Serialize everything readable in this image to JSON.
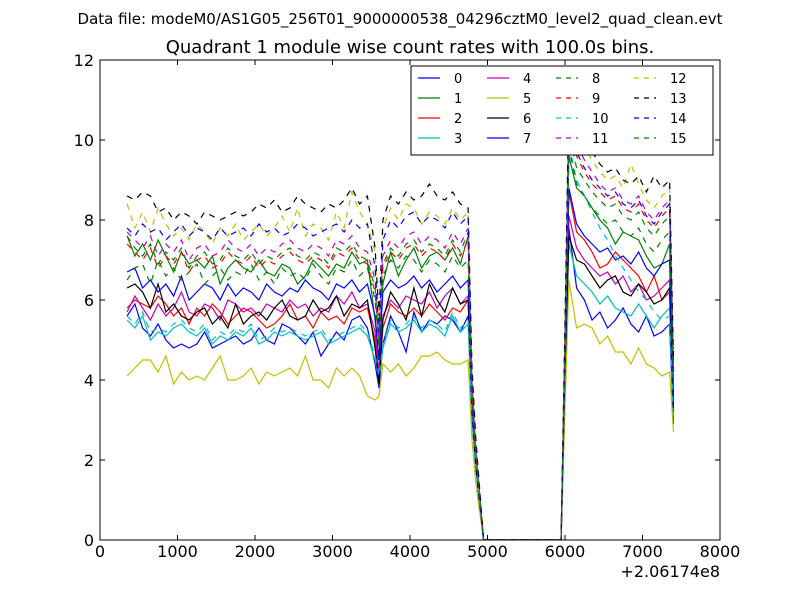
{
  "chart_data": {
    "type": "line",
    "suptitle": "Data file: modeM0/AS1G05_256T01_9000000538_04296cztM0_level2_quad_clean.evt",
    "title": "Quadrant 1 module wise count rates with 100.0s bins.",
    "xlabel": "",
    "ylabel": "",
    "xlim": [
      0,
      8000
    ],
    "ylim": [
      0,
      12
    ],
    "x_offset_label": "+2.06174e8",
    "x_ticks": [
      0,
      1000,
      2000,
      3000,
      4000,
      5000,
      6000,
      7000,
      8000
    ],
    "y_ticks": [
      0,
      2,
      4,
      6,
      8,
      10,
      12
    ],
    "grid": false,
    "legend_position": "upper right",
    "legend_columns": 4,
    "x": [
      350,
      450,
      550,
      650,
      750,
      850,
      950,
      1050,
      1150,
      1250,
      1350,
      1450,
      1550,
      1650,
      1750,
      1850,
      1950,
      2050,
      2150,
      2250,
      2350,
      2450,
      2550,
      2650,
      2750,
      2850,
      2950,
      3050,
      3150,
      3250,
      3350,
      3450,
      3550,
      3600,
      3650,
      3750,
      3850,
      3950,
      4050,
      4150,
      4250,
      4350,
      4450,
      4550,
      4650,
      4750,
      4800,
      4850,
      4950,
      5050,
      5950,
      6000,
      6050,
      6150,
      6250,
      6350,
      6450,
      6550,
      6650,
      6750,
      6850,
      6950,
      7050,
      7150,
      7250,
      7350,
      7400
    ],
    "series": [
      {
        "name": "0",
        "color": "#0000ff",
        "dash": "solid",
        "values": [
          5.6,
          5.9,
          5.3,
          5.1,
          5.4,
          5.0,
          4.8,
          4.9,
          4.8,
          4.9,
          5.2,
          4.8,
          4.9,
          5.0,
          5.1,
          4.9,
          5.0,
          5.3,
          5.0,
          4.9,
          5.4,
          5.3,
          5.1,
          4.9,
          5.2,
          4.6,
          4.9,
          5.2,
          5.0,
          5.5,
          5.6,
          5.3,
          4.4,
          3.8,
          4.9,
          5.6,
          5.2,
          4.7,
          5.7,
          5.2,
          5.5,
          5.4,
          5.6,
          5.5,
          5.2,
          5.6,
          3.0,
          1.8,
          0.0,
          0.0,
          0.0,
          4.0,
          7.8,
          6.3,
          6.0,
          5.5,
          5.7,
          5.3,
          5.5,
          5.8,
          5.4,
          5.2,
          5.6,
          5.1,
          5.2,
          5.4,
          2.9
        ]
      },
      {
        "name": "1",
        "color": "#008000",
        "dash": "solid",
        "values": [
          7.6,
          7.1,
          7.4,
          7.0,
          7.5,
          7.1,
          6.7,
          7.2,
          6.9,
          7.0,
          6.8,
          7.1,
          6.4,
          6.8,
          7.0,
          6.8,
          6.7,
          7.0,
          6.7,
          6.6,
          6.9,
          6.8,
          6.4,
          6.6,
          7.0,
          6.8,
          6.6,
          6.9,
          6.8,
          7.2,
          6.9,
          7.0,
          5.5,
          4.5,
          6.4,
          7.2,
          6.6,
          7.0,
          7.3,
          6.8,
          7.1,
          7.2,
          7.0,
          7.3,
          6.9,
          7.6,
          3.5,
          2.0,
          0.0,
          0.0,
          0.0,
          4.5,
          9.6,
          8.8,
          8.6,
          8.3,
          8.0,
          7.8,
          7.4,
          7.7,
          7.6,
          7.5,
          7.1,
          6.8,
          6.9,
          7.4,
          3.5
        ]
      },
      {
        "name": "2",
        "color": "#ff0000",
        "dash": "solid",
        "values": [
          5.8,
          6.0,
          5.9,
          5.8,
          6.1,
          5.9,
          5.6,
          5.8,
          5.4,
          5.8,
          5.6,
          5.9,
          5.7,
          5.4,
          5.6,
          5.8,
          5.7,
          5.5,
          5.3,
          5.4,
          5.6,
          5.9,
          5.5,
          5.6,
          5.3,
          5.7,
          5.5,
          5.6,
          5.4,
          5.8,
          5.7,
          5.8,
          5.0,
          4.0,
          5.3,
          5.9,
          5.7,
          5.6,
          5.8,
          5.6,
          5.9,
          5.7,
          5.5,
          5.8,
          5.7,
          6.0,
          3.2,
          1.9,
          0.0,
          0.0,
          0.0,
          4.4,
          8.7,
          7.7,
          7.5,
          7.2,
          6.8,
          6.9,
          7.2,
          7.0,
          6.8,
          6.6,
          6.2,
          6.6,
          6.0,
          6.2,
          3.2
        ]
      },
      {
        "name": "3",
        "color": "#00bfbf",
        "dash": "solid",
        "values": [
          5.5,
          5.3,
          5.6,
          5.0,
          5.2,
          5.1,
          5.3,
          5.4,
          5.2,
          5.1,
          5.3,
          4.9,
          5.1,
          5.0,
          5.2,
          5.1,
          5.3,
          4.9,
          5.0,
          5.2,
          5.1,
          5.2,
          5.1,
          5.0,
          5.1,
          5.2,
          4.9,
          5.0,
          5.1,
          5.2,
          5.3,
          5.1,
          4.5,
          4.0,
          4.8,
          5.4,
          5.2,
          5.3,
          5.5,
          5.2,
          5.4,
          5.3,
          5.1,
          5.6,
          5.2,
          5.4,
          3.0,
          1.8,
          0.0,
          0.0,
          0.0,
          4.3,
          7.4,
          6.6,
          6.4,
          6.2,
          5.9,
          6.1,
          5.8,
          5.7,
          5.6,
          5.9,
          5.6,
          5.3,
          5.6,
          5.8,
          3.1
        ]
      },
      {
        "name": "4",
        "color": "#bf00bf",
        "dash": "solid",
        "values": [
          5.7,
          6.1,
          5.8,
          5.5,
          5.9,
          5.6,
          5.8,
          6.2,
          5.7,
          5.6,
          5.9,
          5.8,
          5.5,
          6.0,
          5.9,
          5.7,
          5.8,
          5.6,
          5.9,
          5.8,
          5.7,
          6.0,
          5.8,
          5.9,
          5.6,
          5.8,
          5.7,
          6.1,
          5.9,
          6.2,
          5.8,
          5.9,
          5.2,
          4.2,
          5.6,
          6.0,
          5.8,
          6.1,
          6.0,
          5.9,
          6.2,
          5.8,
          6.1,
          6.3,
          5.9,
          6.1,
          3.3,
          1.9,
          0.0,
          0.0,
          0.0,
          4.6,
          8.1,
          7.3,
          7.0,
          6.8,
          6.6,
          6.7,
          6.4,
          6.6,
          6.2,
          6.4,
          6.0,
          6.1,
          6.3,
          6.5,
          3.3
        ]
      },
      {
        "name": "5",
        "color": "#bfbf00",
        "dash": "solid",
        "values": [
          4.1,
          4.3,
          4.5,
          4.5,
          4.2,
          4.6,
          3.9,
          4.2,
          4.0,
          4.1,
          4.0,
          4.3,
          4.6,
          4.0,
          4.0,
          4.1,
          4.3,
          3.9,
          4.2,
          4.1,
          4.2,
          4.3,
          4.1,
          4.6,
          4.0,
          4.0,
          3.8,
          4.3,
          4.1,
          4.3,
          4.1,
          3.6,
          3.5,
          3.6,
          4.4,
          4.2,
          4.4,
          4.1,
          4.3,
          4.6,
          4.6,
          4.7,
          4.5,
          4.4,
          4.4,
          4.5,
          2.5,
          1.4,
          0.0,
          0.0,
          0.0,
          3.3,
          6.5,
          5.3,
          5.4,
          5.3,
          4.9,
          5.1,
          4.7,
          4.7,
          4.4,
          4.8,
          4.4,
          4.3,
          4.1,
          4.2,
          2.7
        ]
      },
      {
        "name": "6",
        "color": "#000000",
        "dash": "solid",
        "values": [
          6.3,
          6.4,
          6.2,
          5.8,
          6.4,
          5.7,
          5.9,
          5.6,
          5.5,
          5.7,
          5.8,
          5.4,
          5.6,
          5.3,
          5.9,
          5.4,
          5.6,
          5.7,
          5.5,
          5.8,
          6.0,
          5.6,
          5.5,
          5.6,
          6.0,
          5.7,
          5.8,
          6.1,
          5.6,
          5.9,
          5.8,
          6.0,
          4.8,
          3.9,
          5.5,
          6.2,
          5.9,
          5.5,
          6.3,
          5.6,
          6.4,
          6.0,
          5.7,
          6.3,
          5.9,
          6.0,
          3.2,
          1.8,
          0.0,
          0.0,
          0.0,
          4.2,
          7.6,
          7.0,
          6.9,
          6.6,
          6.3,
          6.5,
          6.6,
          6.2,
          6.1,
          6.4,
          6.2,
          5.9,
          6.0,
          6.3,
          3.2
        ]
      },
      {
        "name": "7",
        "color": "#0000ff",
        "dash": "solid",
        "values": [
          6.7,
          6.8,
          6.3,
          6.5,
          6.2,
          6.4,
          6.1,
          6.6,
          6.0,
          6.2,
          6.4,
          6.3,
          6.0,
          6.4,
          6.1,
          6.3,
          6.2,
          6.0,
          6.4,
          6.2,
          6.1,
          6.3,
          6.2,
          6.5,
          6.3,
          6.2,
          6.0,
          6.4,
          6.3,
          6.5,
          6.2,
          6.4,
          5.6,
          4.5,
          6.2,
          6.5,
          6.3,
          6.4,
          6.6,
          6.3,
          6.5,
          6.2,
          6.4,
          6.6,
          6.3,
          6.5,
          3.4,
          2.0,
          0.0,
          0.0,
          0.0,
          4.7,
          8.8,
          7.9,
          7.6,
          7.4,
          7.2,
          7.3,
          7.0,
          7.1,
          6.9,
          7.2,
          6.8,
          6.6,
          6.9,
          7.0,
          3.5
        ]
      },
      {
        "name": "8",
        "color": "#008000",
        "dash": "dashed",
        "values": [
          7.6,
          7.3,
          7.1,
          7.4,
          6.9,
          7.2,
          7.0,
          7.3,
          6.8,
          7.1,
          7.2,
          6.9,
          7.0,
          7.3,
          7.1,
          7.0,
          7.2,
          6.9,
          7.1,
          7.0,
          7.2,
          7.3,
          7.1,
          7.0,
          7.2,
          7.1,
          6.9,
          7.3,
          7.2,
          7.4,
          7.1,
          7.0,
          6.3,
          5.0,
          6.9,
          7.3,
          7.1,
          7.4,
          7.5,
          7.2,
          7.4,
          7.3,
          7.1,
          7.5,
          7.2,
          7.7,
          3.8,
          2.2,
          0.0,
          0.0,
          0.0,
          5.0,
          10.2,
          9.3,
          9.0,
          8.7,
          8.5,
          8.3,
          8.4,
          8.1,
          8.0,
          8.2,
          7.8,
          7.6,
          7.9,
          8.1,
          4.0
        ]
      },
      {
        "name": "9",
        "color": "#ff0000",
        "dash": "dashed",
        "values": [
          7.4,
          7.2,
          7.0,
          7.3,
          6.8,
          7.1,
          6.9,
          7.2,
          6.7,
          7.0,
          7.1,
          6.8,
          6.9,
          7.2,
          7.0,
          6.9,
          7.1,
          6.8,
          7.0,
          6.9,
          7.1,
          7.2,
          7.0,
          6.9,
          7.1,
          7.0,
          6.8,
          7.2,
          7.1,
          7.3,
          7.0,
          6.9,
          6.2,
          4.9,
          6.8,
          7.2,
          7.0,
          7.3,
          7.4,
          7.1,
          7.3,
          7.2,
          7.0,
          7.4,
          7.1,
          7.5,
          3.7,
          2.1,
          0.0,
          0.0,
          0.0,
          4.9,
          10.5,
          9.6,
          9.2,
          8.9,
          8.7,
          8.5,
          8.6,
          8.3,
          8.2,
          8.4,
          8.0,
          7.8,
          8.1,
          8.3,
          4.1
        ]
      },
      {
        "name": "10",
        "color": "#00bfbf",
        "dash": "dashed",
        "values": [
          5.6,
          5.4,
          5.7,
          5.2,
          5.3,
          5.2,
          5.4,
          5.5,
          5.3,
          5.2,
          5.4,
          5.0,
          5.2,
          5.1,
          5.3,
          5.2,
          5.4,
          5.0,
          5.1,
          5.3,
          5.2,
          5.3,
          5.2,
          5.1,
          5.2,
          5.3,
          5.0,
          5.1,
          5.2,
          5.3,
          5.4,
          5.2,
          4.6,
          4.1,
          4.9,
          5.5,
          5.3,
          5.4,
          5.6,
          5.3,
          5.5,
          5.4,
          5.2,
          5.7,
          5.3,
          5.5,
          3.0,
          1.8,
          0.0,
          0.0,
          0.0,
          4.4,
          9.9,
          9.0,
          8.6,
          8.2,
          7.8,
          7.5,
          7.1,
          6.8,
          6.5,
          6.2,
          6.0,
          5.7,
          5.5,
          5.6,
          3.0
        ]
      },
      {
        "name": "11",
        "color": "#bf00bf",
        "dash": "dashed",
        "values": [
          7.7,
          7.5,
          7.3,
          7.6,
          7.1,
          7.4,
          7.2,
          7.5,
          7.0,
          7.3,
          7.4,
          7.1,
          7.2,
          7.5,
          7.3,
          7.2,
          7.4,
          7.1,
          7.3,
          7.2,
          7.4,
          7.5,
          7.3,
          7.2,
          7.4,
          7.3,
          7.1,
          7.5,
          7.4,
          7.6,
          7.3,
          7.2,
          6.5,
          5.1,
          7.1,
          7.5,
          7.3,
          7.6,
          7.7,
          7.4,
          7.6,
          7.5,
          7.3,
          7.7,
          7.4,
          7.8,
          3.9,
          2.2,
          0.0,
          0.0,
          0.0,
          5.1,
          10.8,
          9.9,
          9.5,
          9.2,
          8.9,
          8.7,
          8.8,
          8.5,
          8.4,
          8.6,
          8.2,
          8.0,
          8.3,
          8.5,
          4.2
        ]
      },
      {
        "name": "12",
        "color": "#bfbf00",
        "dash": "dashed",
        "values": [
          8.4,
          7.8,
          8.2,
          7.7,
          8.3,
          7.9,
          7.6,
          7.8,
          7.5,
          7.9,
          7.7,
          7.4,
          7.8,
          7.6,
          7.9,
          7.5,
          7.7,
          7.9,
          7.6,
          7.8,
          8.1,
          7.7,
          8.3,
          7.6,
          7.9,
          7.8,
          7.5,
          8.2,
          7.8,
          8.7,
          8.2,
          7.9,
          7.2,
          5.4,
          7.8,
          8.3,
          8.0,
          8.4,
          8.3,
          7.9,
          8.2,
          8.1,
          7.9,
          8.3,
          8.0,
          8.2,
          4.2,
          2.4,
          0.0,
          0.0,
          0.0,
          5.3,
          11.0,
          10.2,
          9.8,
          9.5,
          9.2,
          9.0,
          9.1,
          8.8,
          9.4,
          8.9,
          8.5,
          8.3,
          8.6,
          8.8,
          4.4
        ]
      },
      {
        "name": "13",
        "color": "#000000",
        "dash": "dashed",
        "values": [
          8.6,
          8.5,
          8.7,
          8.6,
          8.2,
          8.3,
          8.0,
          8.2,
          8.1,
          7.9,
          8.2,
          8.1,
          8.0,
          8.1,
          8.2,
          8.1,
          8.2,
          8.4,
          8.3,
          8.5,
          8.2,
          8.3,
          8.6,
          8.4,
          8.3,
          8.2,
          8.4,
          8.3,
          8.5,
          8.8,
          8.4,
          8.6,
          7.3,
          5.6,
          8.0,
          8.6,
          8.4,
          8.7,
          8.5,
          8.6,
          8.9,
          8.6,
          8.5,
          8.7,
          8.4,
          8.3,
          4.3,
          2.5,
          0.0,
          0.0,
          0.0,
          5.5,
          11.2,
          10.4,
          10.0,
          9.7,
          9.4,
          9.2,
          9.3,
          9.0,
          8.9,
          9.1,
          8.7,
          9.1,
          8.8,
          9.0,
          4.5
        ]
      },
      {
        "name": "14",
        "color": "#0000ff",
        "dash": "dashed",
        "values": [
          7.8,
          7.6,
          7.9,
          7.7,
          7.8,
          7.5,
          7.7,
          7.9,
          7.6,
          7.8,
          7.7,
          7.5,
          7.8,
          7.6,
          7.7,
          7.8,
          7.6,
          7.9,
          7.7,
          7.8,
          7.6,
          7.7,
          7.9,
          7.8,
          7.6,
          7.7,
          7.8,
          7.9,
          7.7,
          8.0,
          7.8,
          7.9,
          6.8,
          5.2,
          7.5,
          8.0,
          7.8,
          8.1,
          8.2,
          7.9,
          8.1,
          8.0,
          7.8,
          8.2,
          7.9,
          8.1,
          4.1,
          2.3,
          0.0,
          0.0,
          0.0,
          5.2,
          10.6,
          9.7,
          9.3,
          9.0,
          8.8,
          8.6,
          8.7,
          8.4,
          8.3,
          8.5,
          8.1,
          7.9,
          8.2,
          8.4,
          4.2
        ]
      },
      {
        "name": "15",
        "color": "#008000",
        "dash": "dashed",
        "values": [
          6.5,
          6.8,
          6.9,
          6.4,
          7.0,
          6.6,
          6.8,
          6.5,
          6.7,
          6.9,
          6.4,
          6.6,
          6.8,
          6.5,
          6.7,
          6.6,
          6.9,
          6.5,
          6.7,
          6.4,
          6.8,
          6.6,
          6.7,
          6.5,
          6.9,
          6.6,
          6.4,
          6.8,
          6.7,
          7.0,
          6.6,
          6.8,
          6.0,
          4.8,
          6.6,
          7.0,
          6.8,
          7.1,
          7.0,
          6.7,
          7.0,
          6.9,
          6.7,
          7.1,
          6.8,
          7.0,
          3.6,
          2.1,
          0.0,
          0.0,
          0.0,
          4.8,
          9.8,
          8.9,
          8.6,
          8.3,
          8.1,
          7.9,
          8.0,
          7.7,
          7.6,
          7.8,
          7.4,
          7.2,
          7.5,
          7.7,
          3.8
        ]
      }
    ]
  }
}
